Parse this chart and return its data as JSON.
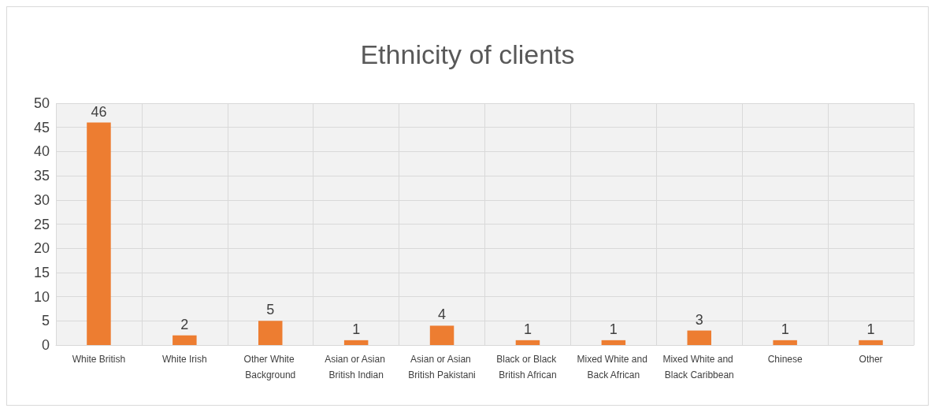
{
  "chart_data": {
    "type": "bar",
    "title": "Ethnicity of clients",
    "categories": [
      "White British",
      "White Irish",
      "Other White Background",
      "Asian or Asian British Indian",
      "Asian or Asian British Pakistani",
      "Black or Black British African",
      "Mixed White and Back African",
      "Mixed White and Black Caribbean",
      "Chinese",
      "Other"
    ],
    "values": [
      46,
      2,
      5,
      1,
      4,
      1,
      1,
      3,
      1,
      1
    ],
    "color": "#ed7d31",
    "ylim": [
      0,
      50
    ],
    "yticks": [
      0,
      5,
      10,
      15,
      20,
      25,
      30,
      35,
      40,
      45,
      50
    ],
    "grid": true,
    "data_labels": true
  }
}
